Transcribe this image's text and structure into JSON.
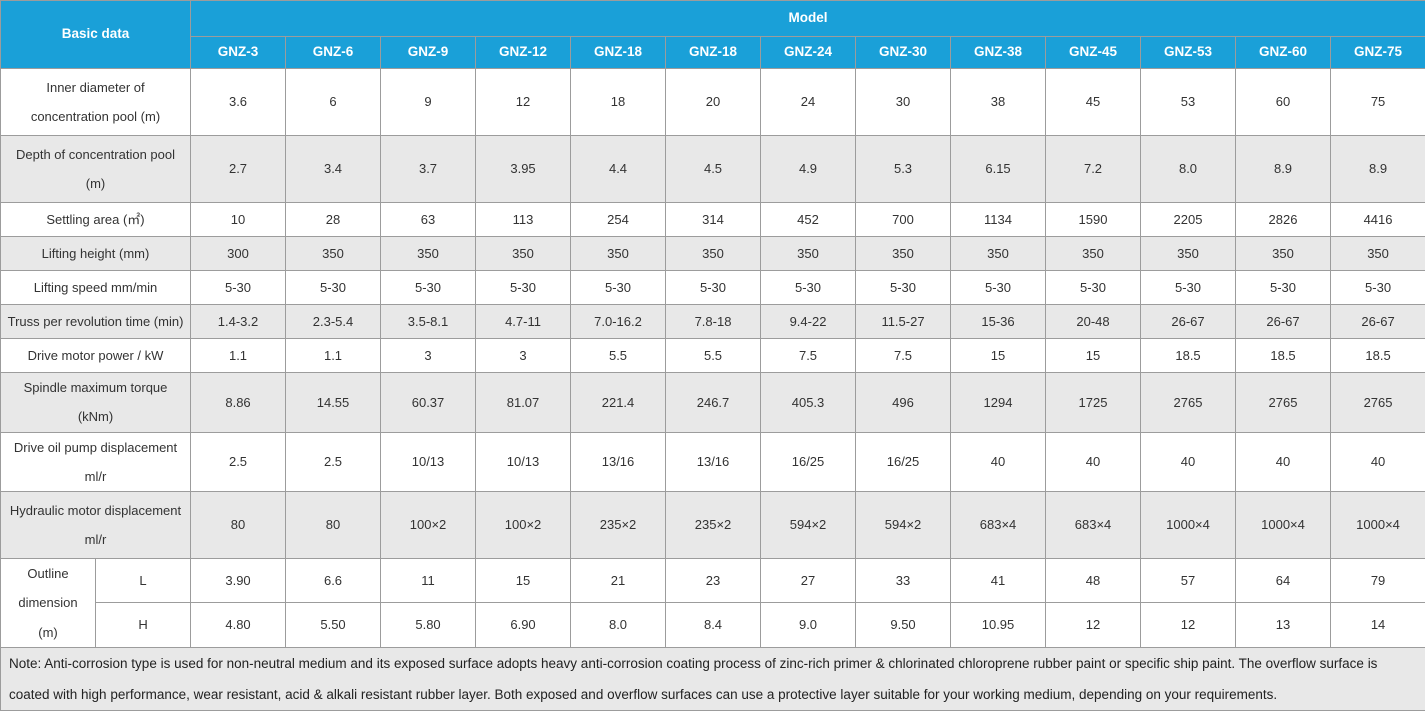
{
  "colors": {
    "header_bg": "#1AA0D8",
    "header_text": "#FFFFFF",
    "row_shade_bg": "#E8E8E8",
    "border": "#9C9C9C",
    "text": "#333333"
  },
  "header": {
    "basic_data_label": "Basic data",
    "model_label": "Model",
    "models": [
      "GNZ-3",
      "GNZ-6",
      "GNZ-9",
      "GNZ-12",
      "GNZ-18",
      "GNZ-18",
      "GNZ-24",
      "GNZ-30",
      "GNZ-38",
      "GNZ-45",
      "GNZ-53",
      "GNZ-60",
      "GNZ-75"
    ]
  },
  "rows": [
    {
      "label": "Inner diameter of concentration pool (m)",
      "shaded": false,
      "tall": true,
      "values": [
        "3.6",
        "6",
        "9",
        "12",
        "18",
        "20",
        "24",
        "30",
        "38",
        "45",
        "53",
        "60",
        "75"
      ]
    },
    {
      "label": "Depth of concentration pool (m)",
      "shaded": true,
      "tall": true,
      "values": [
        "2.7",
        "3.4",
        "3.7",
        "3.95",
        "4.4",
        "4.5",
        "4.9",
        "5.3",
        "6.15",
        "7.2",
        "8.0",
        "8.9",
        "8.9"
      ]
    },
    {
      "label": "Settling area (㎡)",
      "shaded": false,
      "tall": false,
      "values": [
        "10",
        "28",
        "63",
        "113",
        "254",
        "314",
        "452",
        "700",
        "1134",
        "1590",
        "2205",
        "2826",
        "4416"
      ]
    },
    {
      "label": "Lifting height (mm)",
      "shaded": true,
      "tall": false,
      "values": [
        "300",
        "350",
        "350",
        "350",
        "350",
        "350",
        "350",
        "350",
        "350",
        "350",
        "350",
        "350",
        "350"
      ]
    },
    {
      "label": "Lifting speed mm/min",
      "shaded": false,
      "tall": false,
      "values": [
        "5-30",
        "5-30",
        "5-30",
        "5-30",
        "5-30",
        "5-30",
        "5-30",
        "5-30",
        "5-30",
        "5-30",
        "5-30",
        "5-30",
        "5-30"
      ]
    },
    {
      "label": "Truss per revolution time (min)",
      "shaded": true,
      "tall": false,
      "values": [
        "1.4-3.2",
        "2.3-5.4",
        "3.5-8.1",
        "4.7-11",
        "7.0-16.2",
        "7.8-18",
        "9.4-22",
        "11.5-27",
        "15-36",
        "20-48",
        "26-67",
        "26-67",
        "26-67"
      ]
    },
    {
      "label": "Drive motor power / kW",
      "shaded": false,
      "tall": false,
      "values": [
        "1.1",
        "1.1",
        "3",
        "3",
        "5.5",
        "5.5",
        "7.5",
        "7.5",
        "15",
        "15",
        "18.5",
        "18.5",
        "18.5"
      ]
    },
    {
      "label": "Spindle maximum torque (kNm)",
      "shaded": true,
      "tall": false,
      "values": [
        "8.86",
        "14.55",
        "60.37",
        "81.07",
        "221.4",
        "246.7",
        "405.3",
        "496",
        "1294",
        "1725",
        "2765",
        "2765",
        "2765"
      ]
    },
    {
      "label": "Drive oil pump displacement ml/r",
      "shaded": false,
      "tall": false,
      "values": [
        "2.5",
        "2.5",
        "10/13",
        "10/13",
        "13/16",
        "13/16",
        "16/25",
        "16/25",
        "40",
        "40",
        "40",
        "40",
        "40"
      ]
    },
    {
      "label": "Hydraulic motor displacement ml/r",
      "shaded": true,
      "tall": true,
      "values": [
        "80",
        "80",
        "100×2",
        "100×2",
        "235×2",
        "235×2",
        "594×2",
        "594×2",
        "683×4",
        "683×4",
        "1000×4",
        "1000×4",
        "1000×4"
      ]
    }
  ],
  "outline": {
    "label": "Outline dimension (m)",
    "sub_rows": [
      {
        "label": "L",
        "values": [
          "3.90",
          "6.6",
          "11",
          "15",
          "21",
          "23",
          "27",
          "33",
          "41",
          "48",
          "57",
          "64",
          "79"
        ]
      },
      {
        "label": "H",
        "values": [
          "4.80",
          "5.50",
          "5.80",
          "6.90",
          "8.0",
          "8.4",
          "9.0",
          "9.50",
          "10.95",
          "12",
          "12",
          "13",
          "14"
        ]
      }
    ]
  },
  "note": "Note: Anti-corrosion type is used for non-neutral medium and its exposed surface adopts heavy anti-corrosion coating process of zinc-rich primer & chlorinated chloroprene rubber paint or specific ship paint. The overflow surface is coated with high performance, wear resistant, acid & alkali resistant rubber layer. Both exposed and overflow surfaces can use a protective layer suitable for your working medium, depending on your requirements."
}
